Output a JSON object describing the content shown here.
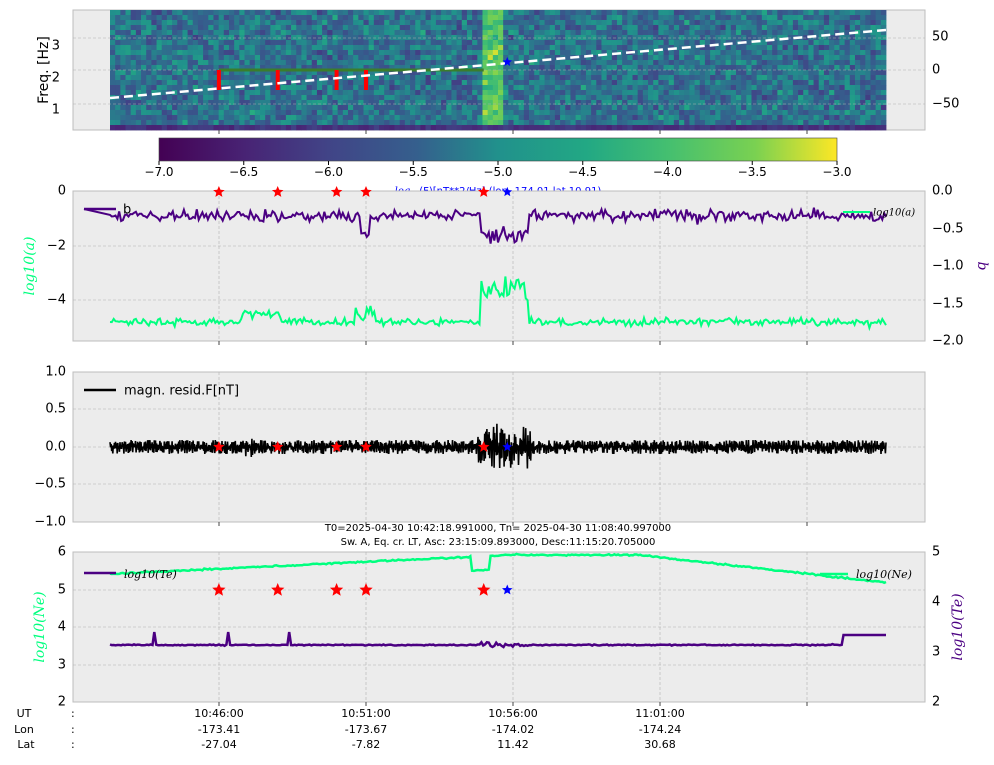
{
  "colors": {
    "a_series": "#00ff7f",
    "b_series": "#4b0082",
    "resid": "#000000",
    "te": "#00ff7f",
    "ne": "#4b0082",
    "red_marker": "#ff0000",
    "blue_marker": "#0000ff",
    "dash_line": "#ffffff",
    "track_line": "#3a7d2c"
  },
  "chart_data": [
    {
      "type": "heatmap",
      "ylabel": "Freq. [Hz]",
      "ylim": [
        0.4,
        3.9
      ],
      "yticks": [
        "1",
        "2",
        "3"
      ],
      "right_yticks": [
        "50",
        "0",
        "−50"
      ],
      "right_ylim": [
        -90,
        90
      ],
      "colormap": "viridis",
      "colorbar_ticks": [
        "−7.0",
        "−6.5",
        "−6.0",
        "−5.5",
        "−5.0",
        "−4.5",
        "−4.0",
        "−3.5",
        "−3.0"
      ],
      "colorbar_range": [
        -7.0,
        -3.0
      ],
      "colorbar_label_prefix": "log",
      "colorbar_label_sub": "10",
      "colorbar_label_rest": "(F)[nT**2/Hz] (lon -174.01 lat 10.91)",
      "grid": true
    },
    {
      "type": "line",
      "ylabel_left": "log10(a)",
      "ylabel_right": "b",
      "ylim_left": [
        -5.5,
        0
      ],
      "yticks_left": [
        "0",
        "−2",
        "−4"
      ],
      "ylim_right": [
        -2.0,
        0.0
      ],
      "yticks_right": [
        "0.0",
        "−0.5",
        "−1.0",
        "−1.5",
        "−2.0"
      ],
      "legend_left": "b",
      "legend_right": "log10(a)",
      "grid": true
    },
    {
      "type": "line",
      "ylim": [
        -1.0,
        1.0
      ],
      "yticks": [
        "1.0",
        "0.5",
        "0.0",
        "−0.5",
        "−1.0"
      ],
      "legend": "magn. resid.F[nT]",
      "grid": true
    },
    {
      "type": "line",
      "title_line1": "T0=2025-04-30 10:42:18.991000, Tn= 2025-04-30 11:08:40.997000",
      "title_line2": "Sw. A, Eq. cr. LT, Asc: 23:15:09.893000, Desc:11:15:20.705000",
      "ylabel_left": "log10(Ne)",
      "ylabel_right": "log10(Te)",
      "ylim_left": [
        2,
        6
      ],
      "yticks_left": [
        "6",
        "5",
        "4",
        "3",
        "2"
      ],
      "ylim_right": [
        2,
        5
      ],
      "yticks_right": [
        "5",
        "4",
        "3",
        "2"
      ],
      "legend_left": "log10(Te)",
      "legend_right": "log10(Ne)",
      "grid": true
    }
  ],
  "xaxis": {
    "row_labels": [
      "UT",
      "Lon",
      "Lat"
    ],
    "sep": ":",
    "ticks": [
      {
        "ut": "10:46:00",
        "lon": "-173.41",
        "lat": "-27.04"
      },
      {
        "ut": "10:51:00",
        "lon": "-173.67",
        "lat": "-7.82"
      },
      {
        "ut": "10:56:00",
        "lon": "-174.02",
        "lat": "11.42"
      },
      {
        "ut": "11:01:00",
        "lon": "-174.24",
        "lat": "30.68"
      }
    ]
  },
  "markers": {
    "red_minutes": [
      3.7,
      5.7,
      7.7,
      8.7,
      12.7
    ],
    "blue_minute": 13.5
  }
}
